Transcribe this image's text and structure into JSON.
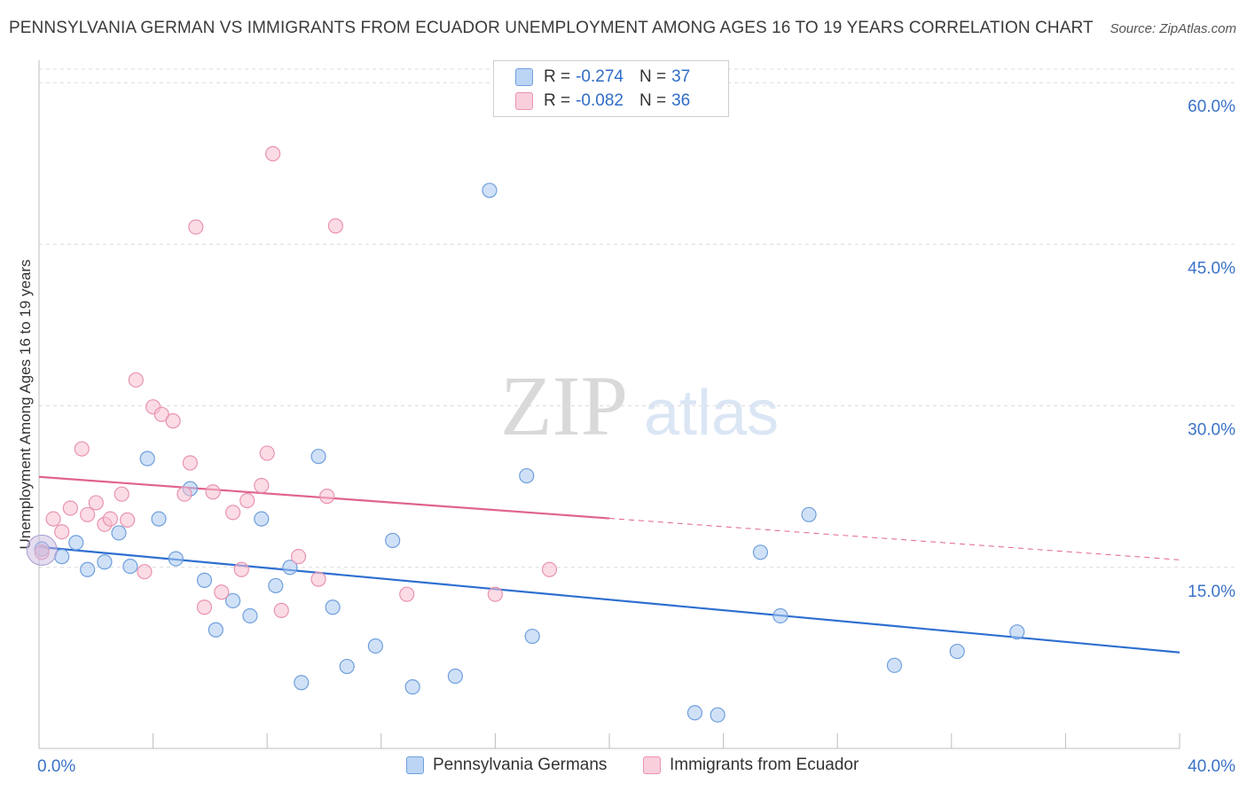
{
  "title": "PENNSYLVANIA GERMAN VS IMMIGRANTS FROM ECUADOR UNEMPLOYMENT AMONG AGES 16 TO 19 YEARS CORRELATION CHART",
  "source": "Source: ZipAtlas.com",
  "watermark": {
    "zip": "ZIP",
    "atlas": "atlas"
  },
  "legend_stats": [
    {
      "r_label": "R =",
      "r_value": "-0.274",
      "n_label": "N =",
      "n_value": "37"
    },
    {
      "r_label": "R =",
      "r_value": "-0.082",
      "n_label": "N =",
      "n_value": "36"
    }
  ],
  "chart_data": {
    "type": "scatter",
    "title": "PENNSYLVANIA GERMAN VS IMMIGRANTS FROM ECUADOR UNEMPLOYMENT AMONG AGES 16 TO 19 YEARS CORRELATION CHART",
    "xlabel": "",
    "ylabel": "Unemployment Among Ages 16 to 19 years",
    "xlim": [
      0,
      40
    ],
    "ylim": [
      0,
      61.5
    ],
    "x_tick_labels": [
      "0.0%",
      "40.0%"
    ],
    "y_ticks": [
      15,
      30,
      45,
      60
    ],
    "y_tick_labels": [
      "15.0%",
      "30.0%",
      "45.0%",
      "60.0%"
    ],
    "grid": true,
    "series": [
      {
        "name": "Pennsylvania Germans",
        "color": "#a9c8f0",
        "edge_color": "#6f9fdc",
        "trend_color": "#2e6fd0",
        "trend": {
          "x0": 0,
          "y0": 16.9,
          "x1": 40,
          "y1": 7.1,
          "dashed_from": null
        },
        "points": [
          [
            0.1,
            16.7
          ],
          [
            0.8,
            16.0
          ],
          [
            1.3,
            17.3
          ],
          [
            1.7,
            14.8
          ],
          [
            2.3,
            15.5
          ],
          [
            2.8,
            18.2
          ],
          [
            3.2,
            15.1
          ],
          [
            3.8,
            25.1
          ],
          [
            4.2,
            19.5
          ],
          [
            4.8,
            15.8
          ],
          [
            5.3,
            22.3
          ],
          [
            5.8,
            13.8
          ],
          [
            6.2,
            9.2
          ],
          [
            6.8,
            11.9
          ],
          [
            7.4,
            10.5
          ],
          [
            7.8,
            19.5
          ],
          [
            8.3,
            13.3
          ],
          [
            8.8,
            15.0
          ],
          [
            9.2,
            4.3
          ],
          [
            9.8,
            25.3
          ],
          [
            10.3,
            11.3
          ],
          [
            10.8,
            5.8
          ],
          [
            11.8,
            7.7
          ],
          [
            12.4,
            17.5
          ],
          [
            13.1,
            3.9
          ],
          [
            14.6,
            4.9
          ],
          [
            15.8,
            50.0
          ],
          [
            17.1,
            23.5
          ],
          [
            17.3,
            8.6
          ],
          [
            23.0,
            1.5
          ],
          [
            23.8,
            1.3
          ],
          [
            25.3,
            16.4
          ],
          [
            26.0,
            10.5
          ],
          [
            27.0,
            19.9
          ],
          [
            30.0,
            5.9
          ],
          [
            32.2,
            7.2
          ],
          [
            34.3,
            9.0
          ]
        ]
      },
      {
        "name": "Immigrants from Ecuador",
        "color": "#f7bfd0",
        "edge_color": "#e993b1",
        "trend_color": "#e0638f",
        "trend": {
          "x0": 0,
          "y0": 23.4,
          "x1": 40,
          "y1": 15.7,
          "dashed_from": 20
        },
        "points": [
          [
            0.1,
            16.4
          ],
          [
            0.5,
            19.5
          ],
          [
            0.8,
            18.3
          ],
          [
            1.1,
            20.5
          ],
          [
            1.5,
            26.0
          ],
          [
            1.7,
            19.9
          ],
          [
            2.0,
            21.0
          ],
          [
            2.3,
            19.0
          ],
          [
            2.5,
            19.5
          ],
          [
            2.9,
            21.8
          ],
          [
            3.1,
            19.4
          ],
          [
            3.4,
            32.4
          ],
          [
            3.7,
            14.6
          ],
          [
            4.0,
            29.9
          ],
          [
            4.3,
            29.2
          ],
          [
            4.7,
            28.6
          ],
          [
            5.1,
            21.8
          ],
          [
            5.3,
            24.7
          ],
          [
            5.5,
            46.6
          ],
          [
            5.8,
            11.3
          ],
          [
            6.1,
            22.0
          ],
          [
            6.4,
            12.7
          ],
          [
            6.8,
            20.1
          ],
          [
            7.1,
            14.8
          ],
          [
            7.3,
            21.2
          ],
          [
            7.8,
            22.6
          ],
          [
            8.0,
            25.6
          ],
          [
            8.2,
            53.4
          ],
          [
            8.5,
            11.0
          ],
          [
            9.1,
            16.0
          ],
          [
            9.8,
            13.9
          ],
          [
            10.1,
            21.6
          ],
          [
            10.4,
            46.7
          ],
          [
            12.9,
            12.5
          ],
          [
            16.0,
            12.5
          ],
          [
            17.9,
            14.8
          ]
        ]
      }
    ]
  }
}
